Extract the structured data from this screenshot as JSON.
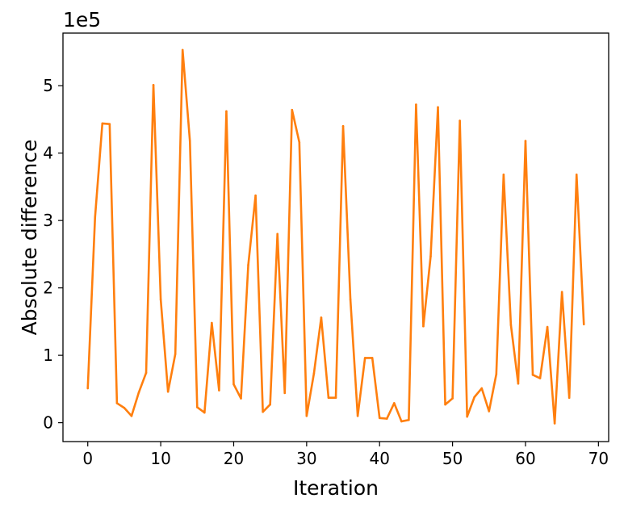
{
  "chart_data": {
    "type": "line",
    "xlabel": "Iteration",
    "ylabel": "Absolute difference",
    "y_offset_text": "1e5",
    "xlim": [
      -3.4,
      71.4
    ],
    "ylim": [
      -0.28,
      5.78
    ],
    "x_ticks": [
      0,
      10,
      20,
      30,
      40,
      50,
      60,
      70
    ],
    "y_ticks": [
      0,
      1,
      2,
      3,
      4,
      5
    ],
    "grid": false,
    "series": [
      {
        "color": "#ff7f0e",
        "x": [
          0,
          1,
          2,
          3,
          4,
          5,
          6,
          7,
          8,
          9,
          10,
          11,
          12,
          13,
          14,
          15,
          16,
          17,
          18,
          19,
          20,
          21,
          22,
          23,
          24,
          25,
          26,
          27,
          28,
          29,
          30,
          31,
          32,
          33,
          34,
          35,
          36,
          37,
          38,
          39,
          40,
          41,
          42,
          43,
          44,
          45,
          46,
          47,
          48,
          49,
          50,
          51,
          52,
          53,
          54,
          55,
          56,
          57,
          58,
          59,
          60,
          61,
          62,
          63,
          64,
          65,
          66,
          67,
          68
        ],
        "values": [
          0.51,
          3.05,
          4.44,
          4.43,
          0.29,
          0.22,
          0.1,
          0.45,
          0.74,
          5.01,
          1.83,
          0.46,
          1.02,
          5.53,
          4.18,
          0.23,
          0.15,
          1.48,
          0.48,
          4.62,
          0.57,
          0.36,
          2.34,
          3.37,
          0.16,
          0.27,
          2.8,
          0.44,
          4.64,
          4.16,
          0.1,
          0.73,
          1.56,
          0.37,
          0.37,
          4.4,
          1.83,
          0.1,
          0.96,
          0.96,
          0.07,
          0.06,
          0.29,
          0.02,
          0.04,
          4.72,
          1.43,
          2.47,
          4.68,
          0.27,
          0.36,
          4.48,
          0.09,
          0.38,
          0.51,
          0.17,
          0.72,
          3.68,
          1.45,
          0.58,
          4.18,
          0.71,
          0.66,
          1.42,
          -0.01,
          1.94,
          0.37,
          3.68,
          1.46
        ]
      }
    ]
  }
}
